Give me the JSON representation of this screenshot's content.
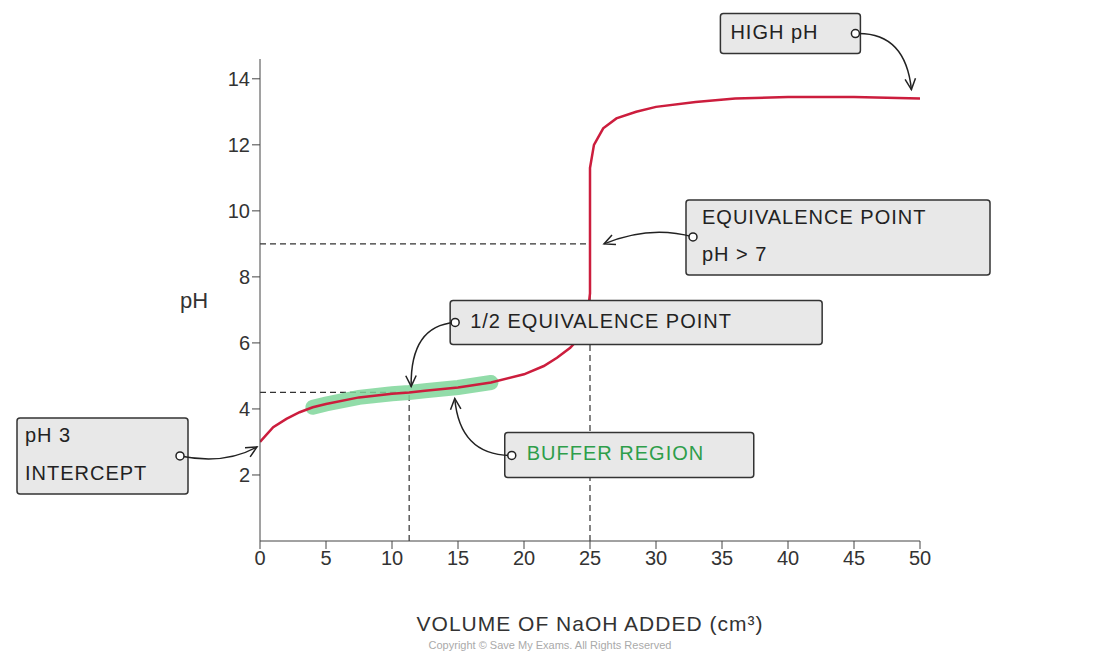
{
  "chart_data": {
    "type": "line",
    "x_label": "VOLUME OF NaOH ADDED (cm³)",
    "y_label": "pH",
    "credit": "Copyright © Save My Exams. All Rights Reserved",
    "x": [
      0,
      1,
      2,
      3,
      4,
      5,
      7.5,
      10,
      11.3,
      12.5,
      15,
      17.5,
      20,
      21.5,
      22.5,
      23.5,
      24.3,
      24.8,
      25,
      25,
      25.3,
      26,
      27,
      28.5,
      30,
      33,
      36,
      40,
      45,
      50
    ],
    "values": [
      3.0,
      3.45,
      3.7,
      3.9,
      4.05,
      4.15,
      4.35,
      4.46,
      4.5,
      4.55,
      4.65,
      4.8,
      5.05,
      5.3,
      5.55,
      5.85,
      6.2,
      6.8,
      7.5,
      11.3,
      12.0,
      12.5,
      12.8,
      13.0,
      13.15,
      13.3,
      13.4,
      13.45,
      13.45,
      13.4
    ],
    "color": "#cc1d3d",
    "xlim": [
      0,
      50
    ],
    "xticks": [
      0,
      5,
      10,
      15,
      20,
      25,
      30,
      35,
      40,
      45,
      50
    ],
    "ylim": [
      0,
      14.6
    ],
    "yticks": [
      2,
      4,
      6,
      8,
      10,
      12,
      14
    ],
    "grid": false,
    "buffer_region": {
      "x_range": [
        4,
        17.5
      ],
      "color": "#7fd69a"
    },
    "annotations": [
      {
        "text": [
          "HIGH pH"
        ],
        "x": 49.5,
        "y": 13.4
      },
      {
        "text": [
          "EQUIVALENCE POINT",
          "pH > 7"
        ],
        "x": 25,
        "y": 9,
        "line_style": "dashed"
      },
      {
        "text": [
          "1/2 EQUIVALENCE POINT"
        ],
        "x": 11.3,
        "y": 4.5,
        "line_style": "dashed"
      },
      {
        "text": [
          "BUFFER REGION"
        ],
        "x": 14.3,
        "y": 4.62,
        "color": "#2e9e4a"
      },
      {
        "text": [
          "pH 3",
          "INTERCEPT"
        ],
        "x": 0,
        "y": 3
      }
    ]
  }
}
